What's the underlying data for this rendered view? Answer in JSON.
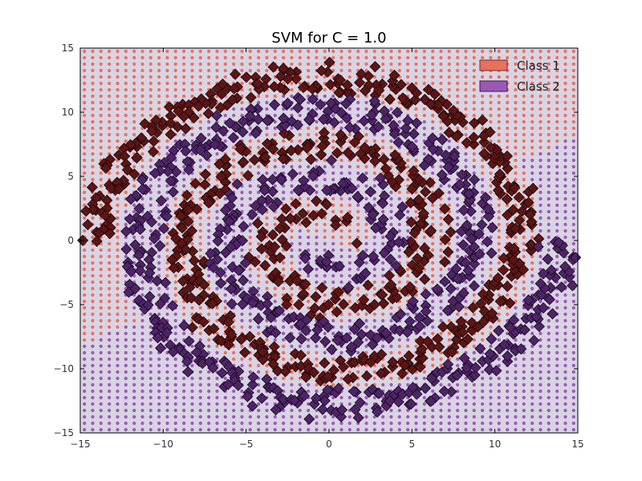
{
  "chart_data": {
    "type": "scatter",
    "title": "SVM for C = 1.0",
    "xlabel": "",
    "ylabel": "",
    "xlim": [
      -15,
      15
    ],
    "ylim": [
      -15,
      15
    ],
    "xticks": [
      -15,
      -10,
      -5,
      0,
      5,
      10,
      15
    ],
    "yticks": [
      -15,
      -10,
      -5,
      0,
      5,
      10,
      15
    ],
    "xtick_labels": [
      "−15",
      "−10",
      "−5",
      "0",
      "5",
      "10",
      "15"
    ],
    "ytick_labels": [
      "−15",
      "−10",
      "−5",
      "0",
      "5",
      "10",
      "15"
    ],
    "grid": false,
    "legend_position": "top-right",
    "background": {
      "kind": "decision-region-grid",
      "class1_color": "#e8705f",
      "class2_color": "#9b59b6",
      "cell_background": "#d9d4e3"
    },
    "series": [
      {
        "name": "Class 1",
        "marker": "diamond",
        "color": "#5c1515",
        "edge": "#1a0505",
        "spiral_offset_deg": 0,
        "radius_start": 1.0,
        "radius_end": 14.0,
        "angle_range_deg": [
          0,
          900
        ]
      },
      {
        "name": "Class 2",
        "marker": "diamond",
        "color": "#4e2466",
        "edge": "#150820",
        "spiral_offset_deg": 180,
        "radius_start": 1.0,
        "radius_end": 14.0,
        "angle_range_deg": [
          0,
          900
        ]
      }
    ]
  },
  "legend": {
    "items": [
      {
        "label": "Class 1",
        "color": "#e8705f",
        "edge": "#7a2a20"
      },
      {
        "label": "Class 2",
        "color": "#9b59b6",
        "edge": "#3a1850"
      }
    ]
  }
}
